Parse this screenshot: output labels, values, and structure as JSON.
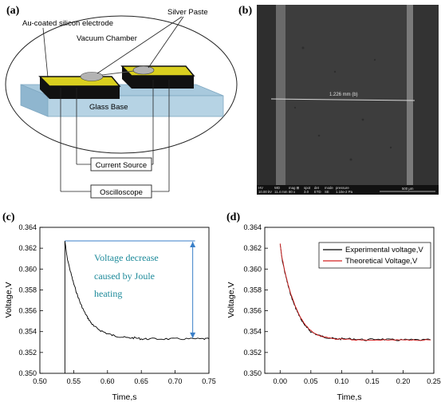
{
  "panels": {
    "a": {
      "label": "(a)",
      "texts": {
        "electrode": "Au-coated silicon electrode",
        "paste": "Silver Paste",
        "chamber": "Vacuum Chamber",
        "base": "Glass Base",
        "source": "Current Source",
        "scope": "Oscilloscope"
      },
      "colors": {
        "electrode_top": "#d9cf1f",
        "base": "#a8c9dd",
        "paste": "#b3b3b3"
      }
    },
    "b": {
      "label": "(b)",
      "measure": "1.226 mm (b)",
      "databar": {
        "headers": [
          "HV",
          "WD",
          "mag ⊞",
          "spot",
          "det",
          "mode",
          "pressure"
        ],
        "values": [
          "10.00 kV",
          "11.4 mm",
          "80 x",
          "3.0",
          "ETD",
          "SE",
          "1.10e-2 Pa"
        ],
        "scale": "500 μm"
      }
    },
    "c": {
      "label": "(c)"
    },
    "d": {
      "label": "(d)"
    }
  },
  "chart_data": [
    {
      "type": "line",
      "panel": "(c)",
      "xlabel": "Time,s",
      "ylabel": "Voltage,V",
      "xlim": [
        0.5,
        0.75
      ],
      "ylim": [
        0.35,
        0.364
      ],
      "xticks": [
        "0.50",
        "0.55",
        "0.60",
        "0.65",
        "0.70",
        "0.75"
      ],
      "yticks": [
        "0.350",
        "0.352",
        "0.354",
        "0.356",
        "0.358",
        "0.360",
        "0.362",
        "0.364"
      ],
      "grid": false,
      "annotation": [
        "Voltage decrease",
        "caused by Joule",
        "heating"
      ],
      "series": [
        {
          "color": "#000000",
          "x": [
            0.537,
            0.54,
            0.545,
            0.55,
            0.555,
            0.56,
            0.565,
            0.57,
            0.575,
            0.58,
            0.59,
            0.6,
            0.61,
            0.62,
            0.63,
            0.64,
            0.65,
            0.66,
            0.68,
            0.7,
            0.72,
            0.74,
            0.75
          ],
          "values": [
            0.3627,
            0.3612,
            0.3598,
            0.3586,
            0.3576,
            0.3567,
            0.356,
            0.3554,
            0.3549,
            0.3545,
            0.3541,
            0.3538,
            0.3536,
            0.3535,
            0.3534,
            0.3534,
            0.3533,
            0.3533,
            0.3533,
            0.3533,
            0.3533,
            0.3533,
            0.3533
          ]
        }
      ]
    },
    {
      "type": "line",
      "panel": "(d)",
      "xlabel": "Time,s",
      "ylabel": "Voltage,V",
      "xlim": [
        -0.025,
        0.25
      ],
      "ylim": [
        0.35,
        0.364
      ],
      "xticks": [
        "0.00",
        "0.05",
        "0.10",
        "0.15",
        "0.20",
        "0.25"
      ],
      "yticks": [
        "0.350",
        "0.352",
        "0.354",
        "0.356",
        "0.358",
        "0.360",
        "0.362",
        "0.364"
      ],
      "grid": false,
      "legend": "top-right",
      "series": [
        {
          "name": "Experimental voltage,V",
          "color": "#000000",
          "x": [
            0.0,
            0.003,
            0.008,
            0.013,
            0.018,
            0.023,
            0.028,
            0.033,
            0.038,
            0.043,
            0.05,
            0.06,
            0.07,
            0.08,
            0.09,
            0.1,
            0.12,
            0.14,
            0.16,
            0.18,
            0.2,
            0.22,
            0.245
          ],
          "values": [
            0.3624,
            0.361,
            0.3596,
            0.3584,
            0.3574,
            0.3566,
            0.3559,
            0.3553,
            0.3548,
            0.3544,
            0.354,
            0.3537,
            0.3535,
            0.3534,
            0.3533,
            0.3533,
            0.3533,
            0.3532,
            0.3533,
            0.3532,
            0.3532,
            0.3532,
            0.3532
          ]
        },
        {
          "name": "Theoretical Voltage,V",
          "color": "#d42020",
          "x": [
            0.0,
            0.003,
            0.008,
            0.013,
            0.018,
            0.023,
            0.028,
            0.033,
            0.038,
            0.043,
            0.05,
            0.06,
            0.07,
            0.08,
            0.09,
            0.1,
            0.12,
            0.14,
            0.16,
            0.18,
            0.2,
            0.22,
            0.245
          ],
          "values": [
            0.3624,
            0.3611,
            0.3597,
            0.3585,
            0.3575,
            0.3567,
            0.356,
            0.3554,
            0.3549,
            0.3545,
            0.3541,
            0.3537,
            0.3535,
            0.3534,
            0.3533,
            0.3533,
            0.3532,
            0.3532,
            0.3532,
            0.3532,
            0.3532,
            0.3532,
            0.3532
          ]
        }
      ]
    }
  ]
}
